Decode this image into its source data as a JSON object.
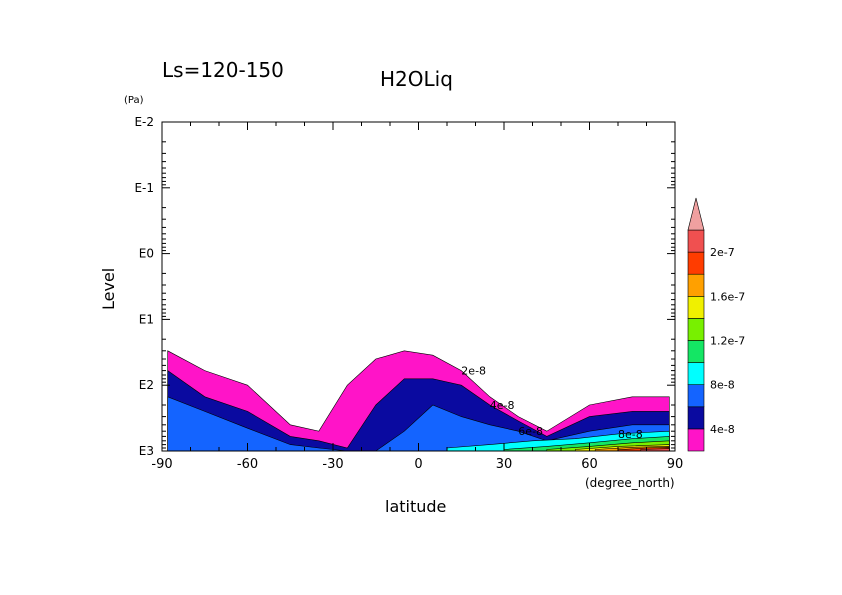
{
  "chart_data": {
    "type": "heatmap",
    "subtitle": "Ls=120-150",
    "title": "H2OLiq",
    "xlabel": "latitude",
    "x_units": "(degree_north)",
    "ylabel": "Level",
    "y_units": "(Pa)",
    "x_range": [
      -90,
      90
    ],
    "y_range": [
      1000,
      0.01
    ],
    "y_scale": "log",
    "x_ticks": [
      "-90",
      "-60",
      "-30",
      "0",
      "30",
      "60",
      "90"
    ],
    "y_ticks": [
      "E-2",
      "E-1",
      "E0",
      "E1",
      "E2",
      "E3"
    ],
    "colorbar": {
      "ticks": [
        "4e-8",
        "8e-8",
        "1.2e-7",
        "1.6e-7",
        "2e-7"
      ],
      "levels": [
        2e-08,
        4e-08,
        6e-08,
        8e-08,
        1e-07,
        1.2e-07,
        1.4e-07,
        1.6e-07,
        1.8e-07,
        2e-07,
        2.2e-07
      ],
      "colors": [
        "#ff14c8",
        "#0a0aa0",
        "#1464ff",
        "#00ffff",
        "#14e664",
        "#78f000",
        "#f0f000",
        "#ffa000",
        "#ff3c00",
        "#f05050",
        "#f0a0a0"
      ]
    },
    "contour_labels": [
      "2e-8",
      "4e-8",
      "6e-8",
      "8e-8"
    ],
    "fields": [
      {
        "level": 2e-08,
        "lat": [
          -88,
          -75,
          -60,
          -45,
          -35,
          -25,
          -15,
          -5,
          5,
          15,
          25,
          35,
          45,
          60,
          75,
          88
        ],
        "p": [
          30,
          60,
          100,
          400,
          500,
          100,
          40,
          30,
          35,
          60,
          150,
          300,
          500,
          200,
          150,
          150
        ]
      },
      {
        "level": 4e-08,
        "lat": [
          -88,
          -75,
          -60,
          -45,
          -35,
          -25,
          -15,
          -5,
          5,
          15,
          25,
          35,
          45,
          60,
          75,
          88
        ],
        "p": [
          60,
          150,
          250,
          600,
          700,
          900,
          200,
          80,
          80,
          100,
          200,
          350,
          600,
          300,
          250,
          250
        ]
      },
      {
        "level": 6e-08,
        "lat": [
          -88,
          -75,
          -60,
          -45,
          -35,
          -25,
          -15,
          -5,
          5,
          15,
          25,
          35,
          45,
          60,
          75,
          88
        ],
        "p": [
          150,
          250,
          450,
          800,
          900,
          1000,
          1000,
          500,
          200,
          300,
          400,
          500,
          700,
          500,
          400,
          400
        ]
      },
      {
        "level": 8e-08,
        "lat": [
          10,
          25,
          40,
          55,
          70,
          88
        ],
        "p": [
          900,
          800,
          700,
          650,
          550,
          500
        ]
      },
      {
        "level": 1e-07,
        "lat": [
          30,
          45,
          60,
          75,
          88
        ],
        "p": [
          950,
          850,
          750,
          650,
          600
        ]
      },
      {
        "level": 1.2e-07,
        "lat": [
          45,
          60,
          75,
          88
        ],
        "p": [
          950,
          850,
          750,
          700
        ]
      },
      {
        "level": 1.4e-07,
        "lat": [
          55,
          70,
          88
        ],
        "p": [
          950,
          850,
          800
        ]
      },
      {
        "level": 1.6e-07,
        "lat": [
          62,
          75,
          88
        ],
        "p": [
          950,
          880,
          850
        ]
      },
      {
        "level": 1.8e-07,
        "lat": [
          70,
          80,
          88
        ],
        "p": [
          960,
          900,
          880
        ]
      },
      {
        "level": 2e-07,
        "lat": [
          78,
          88
        ],
        "p": [
          950,
          920
        ]
      }
    ]
  }
}
